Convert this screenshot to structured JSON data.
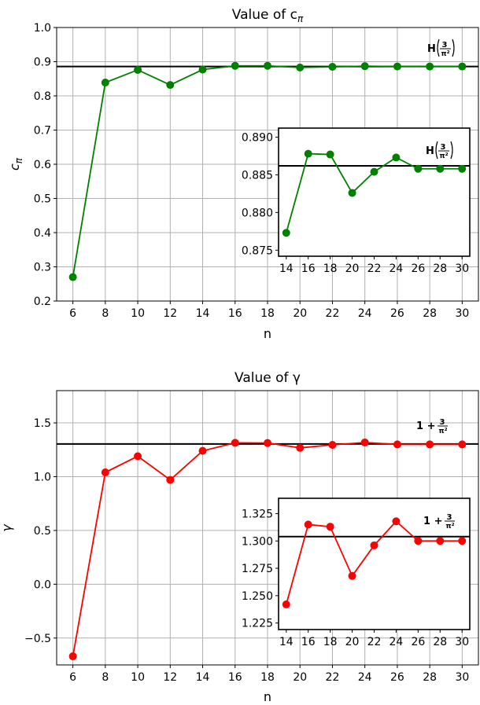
{
  "chart_data": [
    {
      "type": "line",
      "title": "Value of c",
      "title_subscript": "π",
      "xlabel": "n",
      "ylabel": "c",
      "ylabel_subscript": "π",
      "xlim": [
        5,
        31
      ],
      "ylim": [
        0.2,
        1.0
      ],
      "xticks": [
        6,
        8,
        10,
        12,
        14,
        16,
        18,
        20,
        22,
        24,
        26,
        28,
        30
      ],
      "yticks": [
        0.2,
        0.3,
        0.4,
        0.5,
        0.6,
        0.7,
        0.8,
        0.9,
        1.0
      ],
      "ytick_labels": [
        "0.2",
        "0.3",
        "0.4",
        "0.5",
        "0.6",
        "0.7",
        "0.8",
        "0.9",
        "1.0"
      ],
      "grid": true,
      "color": "#008000",
      "x": [
        6,
        8,
        10,
        12,
        14,
        16,
        18,
        20,
        22,
        24,
        26,
        28,
        30
      ],
      "values": [
        0.27,
        0.839,
        0.876,
        0.832,
        0.877,
        0.888,
        0.888,
        0.883,
        0.885,
        0.887,
        0.886,
        0.886,
        0.886
      ],
      "reference_line": {
        "y": 0.886,
        "label": "H(3/π²)"
      },
      "inset": {
        "xlim": [
          13.3,
          30.7
        ],
        "ylim": [
          0.8742,
          0.8912
        ],
        "xticks": [
          14,
          16,
          18,
          20,
          22,
          24,
          26,
          28,
          30
        ],
        "yticks": [
          0.875,
          0.88,
          0.885,
          0.89
        ],
        "ytick_labels": [
          "0.875",
          "0.880",
          "0.885",
          "0.890"
        ],
        "grid": false,
        "x": [
          14,
          16,
          18,
          20,
          22,
          24,
          26,
          28,
          30
        ],
        "values": [
          0.8773,
          0.8878,
          0.8877,
          0.8826,
          0.8854,
          0.8873,
          0.8858,
          0.8858,
          0.8858
        ],
        "reference_line": {
          "y": 0.8862,
          "label": "H(3/π²)"
        }
      }
    },
    {
      "type": "line",
      "title": "Value of γ",
      "xlabel": "n",
      "ylabel": "γ",
      "xlim": [
        5,
        31
      ],
      "ylim": [
        -0.75,
        1.8
      ],
      "xticks": [
        6,
        8,
        10,
        12,
        14,
        16,
        18,
        20,
        22,
        24,
        26,
        28,
        30
      ],
      "yticks": [
        -0.5,
        0.0,
        0.5,
        1.0,
        1.5
      ],
      "ytick_labels": [
        "−0.5",
        "0.0",
        "0.5",
        "1.0",
        "1.5"
      ],
      "grid": true,
      "color": "#ff0000",
      "x": [
        6,
        8,
        10,
        12,
        14,
        16,
        18,
        20,
        22,
        24,
        26,
        28,
        30
      ],
      "values": [
        -0.67,
        1.04,
        1.19,
        0.97,
        1.24,
        1.315,
        1.313,
        1.268,
        1.296,
        1.318,
        1.3,
        1.3,
        1.3
      ],
      "reference_line": {
        "y": 1.304,
        "label": "1+3/π²"
      },
      "inset": {
        "xlim": [
          13.3,
          30.7
        ],
        "ylim": [
          1.219,
          1.339
        ],
        "xticks": [
          14,
          16,
          18,
          20,
          22,
          24,
          26,
          28,
          30
        ],
        "yticks": [
          1.225,
          1.25,
          1.275,
          1.3,
          1.325
        ],
        "ytick_labels": [
          "1.225",
          "1.250",
          "1.275",
          "1.300",
          "1.325"
        ],
        "grid": false,
        "x": [
          14,
          16,
          18,
          20,
          22,
          24,
          26,
          28,
          30
        ],
        "values": [
          1.242,
          1.315,
          1.313,
          1.268,
          1.296,
          1.318,
          1.3,
          1.3,
          1.3
        ],
        "reference_line": {
          "y": 1.304,
          "label": "1+3/π²"
        }
      }
    }
  ]
}
